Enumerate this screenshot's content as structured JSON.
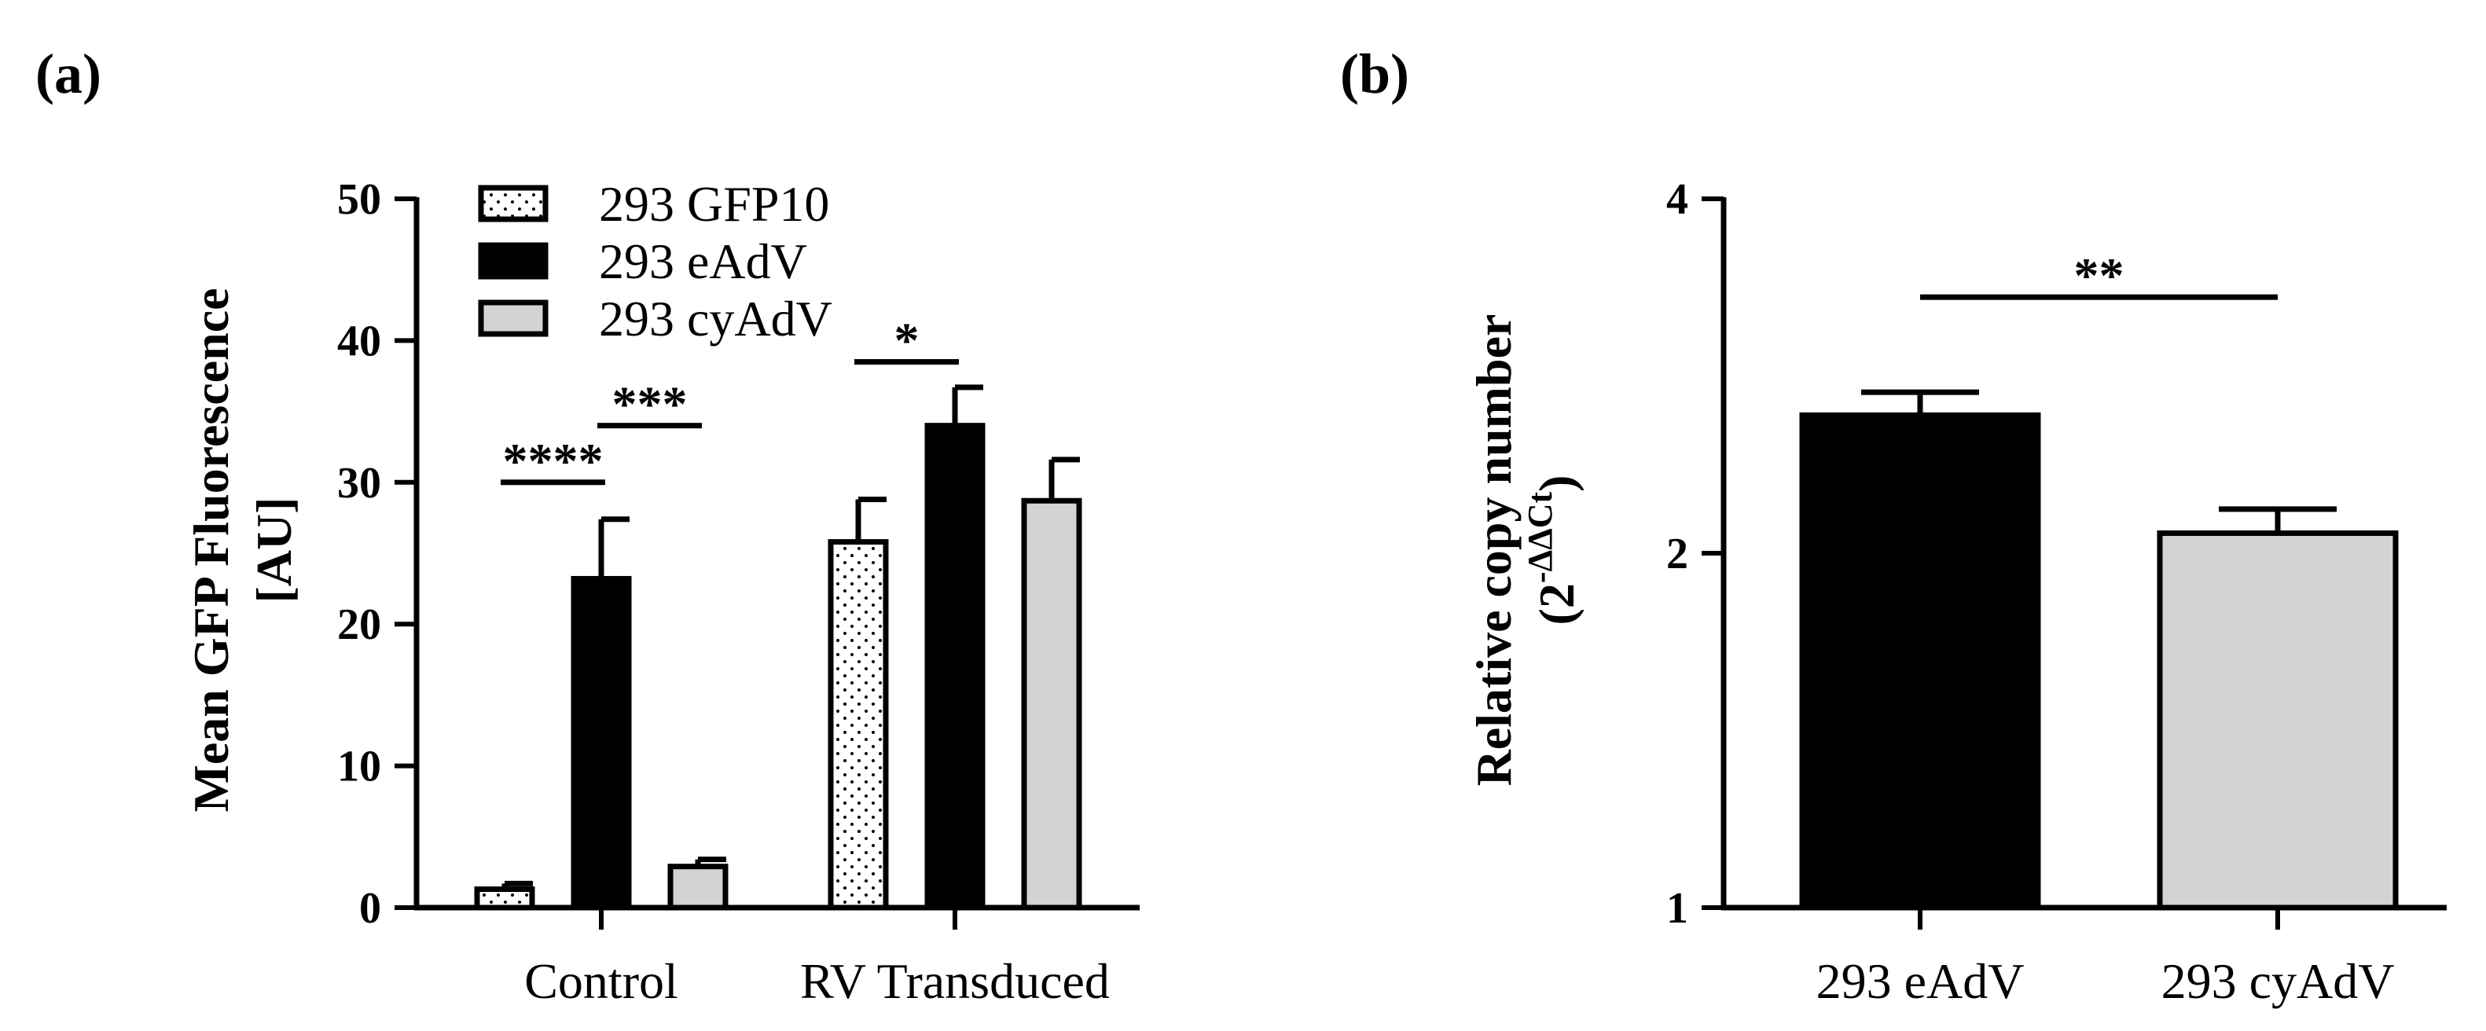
{
  "chart_data": [
    {
      "panel_label": "(a)",
      "type": "bar",
      "ylabel_line1": "Mean GFP Fluorescence",
      "ylabel_line2": "[AU]",
      "ylim": [
        0,
        50
      ],
      "yticks": [
        "0",
        "10",
        "20",
        "30",
        "40",
        "50"
      ],
      "ytick_values": [
        0,
        10,
        20,
        30,
        40,
        50
      ],
      "categories": [
        "Control",
        "RV Transduced"
      ],
      "series": [
        {
          "name": "293 GFP10",
          "values": [
            1.3,
            25.8
          ],
          "errors": [
            0.4,
            3.0
          ],
          "fill": "dots"
        },
        {
          "name": "293 eAdV",
          "values": [
            23.2,
            34.0
          ],
          "errors": [
            4.2,
            2.7
          ],
          "fill": "#000000"
        },
        {
          "name": "293 cyAdV",
          "values": [
            2.9,
            28.7
          ],
          "errors": [
            0.5,
            2.9
          ],
          "fill": "#d3d3d3"
        }
      ],
      "legend_position": "top-left",
      "significance": [
        {
          "label": "****",
          "category": 0,
          "from_series": 0,
          "to_series": 1,
          "y": 30
        },
        {
          "label": "***",
          "category": 0,
          "from_series": 1,
          "to_series": 2,
          "y": 34
        },
        {
          "label": "*",
          "category": 1,
          "from_series": 0,
          "to_series": 1,
          "y": 38.5
        }
      ]
    },
    {
      "panel_label": "(b)",
      "type": "bar",
      "ylabel_line1": "Relative copy number",
      "ylabel_line2_base": "(2",
      "ylabel_line2_sup": "-ΔΔCt",
      "ylabel_line2_end": ")",
      "yscale": "log2",
      "ylim": [
        1,
        4
      ],
      "yticks": [
        "1",
        "2",
        "4"
      ],
      "ytick_values": [
        1,
        2,
        4
      ],
      "categories": [
        "293 eAdV",
        "293 cyAdV"
      ],
      "values": [
        2.62,
        2.08
      ],
      "errors": [
        0.12,
        0.1
      ],
      "fills": [
        "#000000",
        "#d3d3d3"
      ],
      "significance": [
        {
          "label": "**",
          "from": 0,
          "to": 1,
          "y": 3.3
        }
      ]
    }
  ]
}
